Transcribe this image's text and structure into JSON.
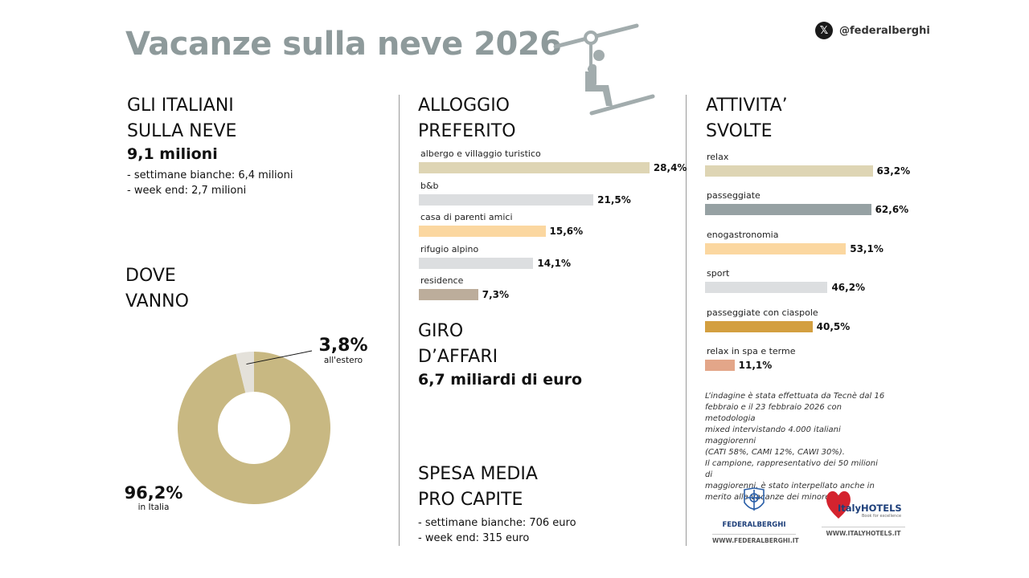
{
  "header": {
    "title": "Vacanze sulla neve 2026",
    "x_icon_glyph": "𝕏",
    "x_handle": "@federalberghi",
    "icon": "ski-lift-icon"
  },
  "italiani": {
    "heading_line1": "GLI ITALIANI",
    "heading_line2": "SULLA NEVE",
    "total": "9,1 milioni",
    "line1": "- settimane bianche: 6,4 milioni",
    "line2": "- week end: 2,7 milioni"
  },
  "dove": {
    "heading_line1": "DOVE",
    "heading_line2": "VANNO"
  },
  "alloggio": {
    "heading_line1": "ALLOGGIO",
    "heading_line2": "PREFERITO"
  },
  "giro": {
    "heading_line1": "GIRO",
    "heading_line2": "D’AFFARI",
    "value": "6,7 miliardi di euro"
  },
  "spesa": {
    "heading_line1": "SPESA MEDIA",
    "heading_line2": "PRO CAPITE",
    "line1": "- settimane bianche: 706 euro",
    "line2": "- week end:  315 euro"
  },
  "attivita": {
    "heading_line1": "ATTIVITA’",
    "heading_line2": "SVOLTE"
  },
  "note": {
    "line1": "L’indagine è stata effettuata da Tecnè dal 16",
    "line2": "febbraio e il 23 febbraio 2026 con metodologia",
    "line3": "mixed intervistando 4.000 italiani maggiorenni",
    "line4": "(CATI 58%, CAMI 12%, CAWI 30%).",
    "line5": "Il campione, rappresentativo dei 50 milioni di",
    "line6": "maggiorenni, è stato interpellato anche in",
    "line7": "merito alle vacanze dei minorenni."
  },
  "logos": {
    "federalberghi_name": "FEDERALBERGHI",
    "federalberghi_url": "WWW.FEDERALBERGHI.IT",
    "italyhotels_name": "ItalyHOTELS",
    "italyhotels_tagline": "Book for excellence",
    "italyhotels_url": "WWW.ITALYHOTELS.IT"
  },
  "chart_data": [
    {
      "type": "bar",
      "orientation": "horizontal",
      "title": "ALLOGGIO PREFERITO",
      "categories": [
        "albergo e villaggio turistico",
        "b&b",
        "casa di parenti amici",
        "rifugio alpino",
        "residence"
      ],
      "values": [
        28.4,
        21.5,
        15.6,
        14.1,
        7.3
      ],
      "value_labels": [
        "28,4%",
        "21,5%",
        "15,6%",
        "14,1%",
        "7,3%"
      ],
      "colors": [
        "#ded5b4",
        "#dcdee0",
        "#fbd7a0",
        "#dcdee0",
        "#bcad9b"
      ]
    },
    {
      "type": "bar",
      "orientation": "horizontal",
      "title": "ATTIVITA’ SVOLTE",
      "categories": [
        "relax",
        "passeggiate",
        "enogastronomia",
        "sport",
        "passeggiate con ciaspole",
        "relax in spa e terme"
      ],
      "values": [
        63.2,
        62.6,
        53.1,
        46.2,
        40.5,
        11.1
      ],
      "value_labels": [
        "63,2%",
        "62,6%",
        "53,1%",
        "46,2%",
        "40,5%",
        "11,1%"
      ],
      "colors": [
        "#ded5b4",
        "#96a1a3",
        "#fbd7a0",
        "#dcdee0",
        "#d39f40",
        "#e3a689"
      ]
    },
    {
      "type": "pie",
      "title": "DOVE VANNO",
      "categories": [
        "in Italia",
        "all'estero"
      ],
      "values": [
        96.2,
        3.8
      ],
      "value_labels": [
        "96,2%",
        "3,8%"
      ],
      "colors": [
        "#c8b882",
        "#e4e1da"
      ]
    }
  ]
}
